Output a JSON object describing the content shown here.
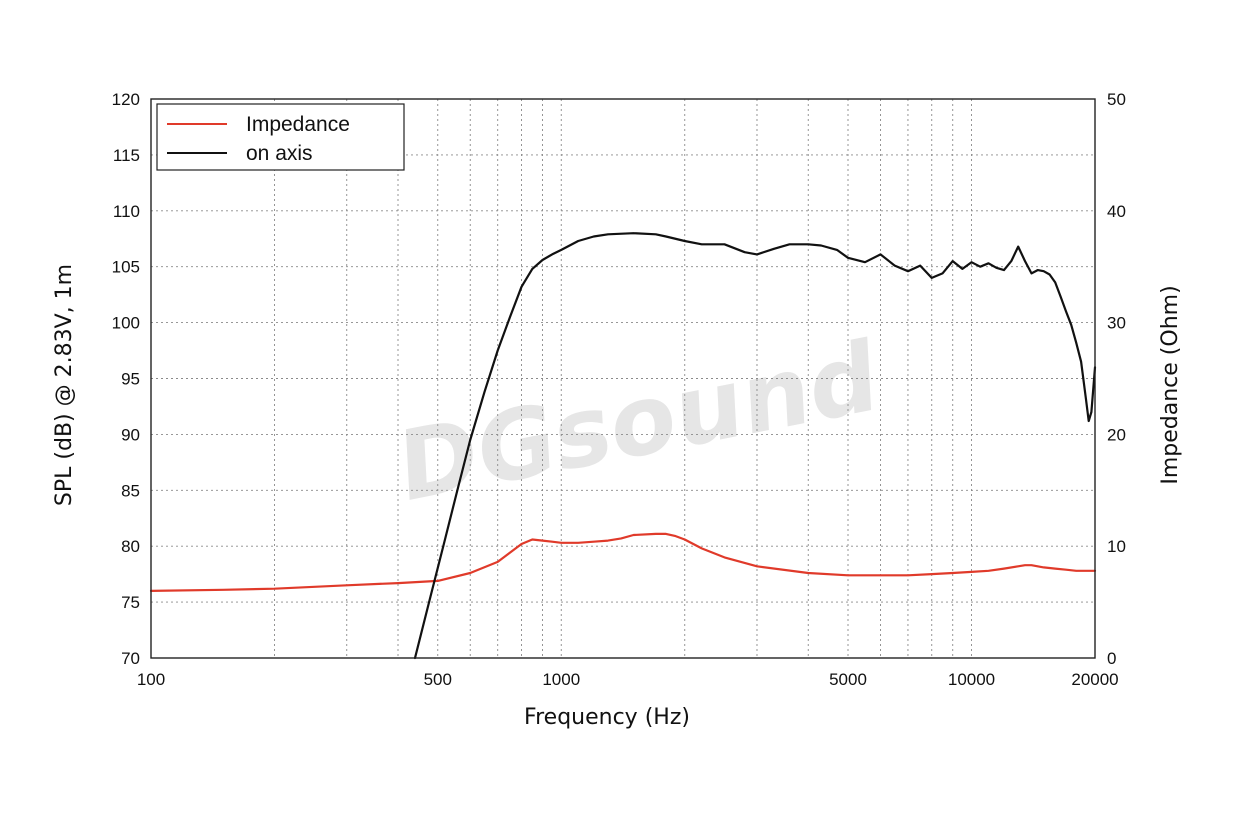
{
  "chart_data": {
    "type": "line",
    "title": "",
    "xlabel": "Frequency (Hz)",
    "ylabel_left": "SPL (dB) @ 2.83V, 1m",
    "ylabel_right": "Impedance (Ohm)",
    "x_scale": "log",
    "xlim": [
      100,
      20000
    ],
    "ylim_left": [
      70,
      120
    ],
    "ylim_right": [
      0,
      50
    ],
    "x_ticks": [
      "100",
      "500",
      "1000",
      "5000",
      "10000",
      "20000"
    ],
    "y_left_ticks": [
      "70",
      "75",
      "80",
      "85",
      "90",
      "95",
      "100",
      "105",
      "110",
      "115",
      "120"
    ],
    "y_right_ticks": [
      "0",
      "10",
      "20",
      "30",
      "40",
      "50"
    ],
    "grid": true,
    "legend_position": "top-left",
    "watermark": "DGsound",
    "series": [
      {
        "name": "Impedance",
        "color": "#e03a2a",
        "axis": "right",
        "x": [
          100,
          150,
          200,
          300,
          400,
          500,
          600,
          700,
          800,
          850,
          900,
          950,
          1000,
          1100,
          1200,
          1300,
          1400,
          1500,
          1700,
          1800,
          1900,
          2000,
          2200,
          2500,
          3000,
          4000,
          5000,
          6000,
          7000,
          8000,
          9000,
          10000,
          11000,
          12000,
          13000,
          13500,
          14000,
          15000,
          16000,
          17000,
          18000,
          19000,
          20000
        ],
        "y": [
          6.0,
          6.1,
          6.2,
          6.5,
          6.7,
          6.9,
          7.6,
          8.6,
          10.2,
          10.6,
          10.5,
          10.4,
          10.3,
          10.3,
          10.4,
          10.5,
          10.7,
          11.0,
          11.1,
          11.1,
          10.9,
          10.6,
          9.8,
          9.0,
          8.2,
          7.6,
          7.4,
          7.4,
          7.4,
          7.5,
          7.6,
          7.7,
          7.8,
          8.0,
          8.2,
          8.3,
          8.3,
          8.1,
          8.0,
          7.9,
          7.8,
          7.8,
          7.8
        ]
      },
      {
        "name": "on axis",
        "color": "#111111",
        "axis": "left",
        "x": [
          440,
          480,
          520,
          560,
          600,
          650,
          700,
          750,
          800,
          850,
          900,
          950,
          1000,
          1100,
          1200,
          1300,
          1500,
          1700,
          1800,
          2000,
          2200,
          2500,
          2800,
          3000,
          3300,
          3600,
          4000,
          4300,
          4700,
          5000,
          5500,
          6000,
          6500,
          7000,
          7500,
          8000,
          8500,
          9000,
          9500,
          10000,
          10500,
          11000,
          11500,
          12000,
          12500,
          13000,
          13500,
          14000,
          14500,
          15000,
          15500,
          16000,
          16500,
          17000,
          17500,
          18000,
          18500,
          19000,
          19300,
          19600,
          20000
        ],
        "y": [
          70.0,
          75.5,
          80.5,
          85.2,
          89.5,
          93.8,
          97.5,
          100.5,
          103.2,
          104.8,
          105.6,
          106.1,
          106.5,
          107.3,
          107.7,
          107.9,
          108.0,
          107.9,
          107.7,
          107.3,
          107.0,
          107.0,
          106.3,
          106.1,
          106.6,
          107.0,
          107.0,
          106.9,
          106.5,
          105.8,
          105.4,
          106.1,
          105.1,
          104.6,
          105.1,
          104.0,
          104.4,
          105.5,
          104.8,
          105.4,
          105.0,
          105.3,
          104.9,
          104.7,
          105.5,
          106.8,
          105.5,
          104.4,
          104.7,
          104.6,
          104.3,
          103.6,
          102.3,
          101.0,
          99.8,
          98.2,
          96.5,
          93.2,
          91.2,
          92.0,
          96.0
        ]
      }
    ]
  }
}
